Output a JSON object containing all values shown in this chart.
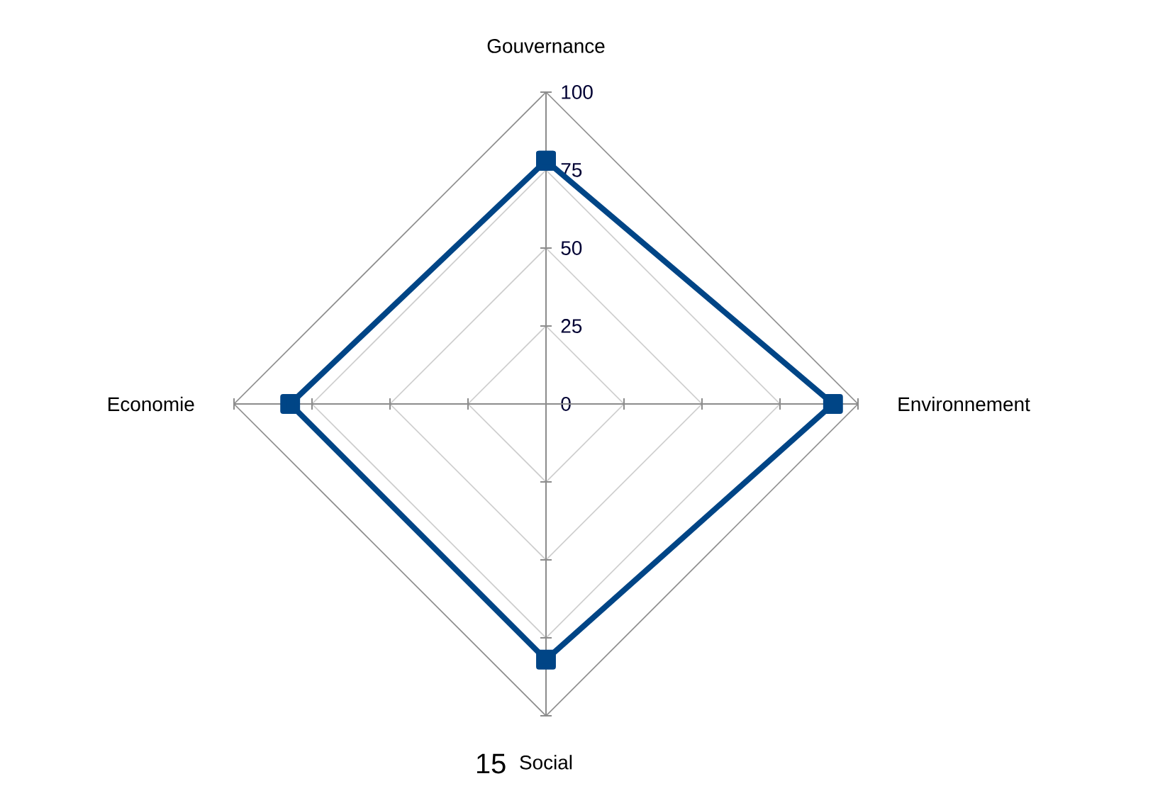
{
  "chart_data": {
    "type": "radar",
    "categories": [
      "Gouvernance",
      "Environnement",
      "Social",
      "Economie"
    ],
    "series": [
      {
        "color": "#004586",
        "values": [
          78,
          92,
          82,
          82
        ]
      }
    ],
    "ylim": [
      0,
      100
    ],
    "yticks": [
      0,
      25,
      50,
      75,
      100
    ],
    "grid": true,
    "marker": "square",
    "line_style": "solid",
    "annotations": [
      "15"
    ]
  }
}
